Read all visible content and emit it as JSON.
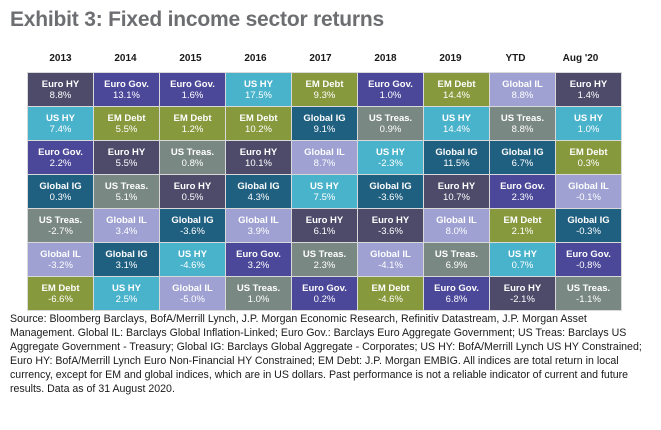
{
  "title": "Exhibit 3: Fixed income sector returns",
  "colors": {
    "Euro HY": "#4d4a6a",
    "Euro Gov.": "#4b4799",
    "US HY": "#4ab3cc",
    "EM Debt": "#87993d",
    "Global IG": "#1f5f80",
    "Global IL": "#9ea1d2",
    "US Treas.": "#7a8883"
  },
  "chart_data": {
    "type": "table",
    "title": "Exhibit 3: Fixed income sector returns",
    "columns": [
      "2013",
      "2014",
      "2015",
      "2016",
      "2017",
      "2018",
      "2019",
      "YTD",
      "Aug '20"
    ],
    "ranked_returns": [
      [
        [
          "Euro HY",
          "8.8%"
        ],
        [
          "US HY",
          "7.4%"
        ],
        [
          "Euro Gov.",
          "2.2%"
        ],
        [
          "Global IG",
          "0.3%"
        ],
        [
          "US Treas.",
          "-2.7%"
        ],
        [
          "Global IL",
          "-3.2%"
        ],
        [
          "EM Debt",
          "-6.6%"
        ]
      ],
      [
        [
          "Euro Gov.",
          "13.1%"
        ],
        [
          "EM Debt",
          "5.5%"
        ],
        [
          "Euro HY",
          "5.5%"
        ],
        [
          "US Treas.",
          "5.1%"
        ],
        [
          "Global IL",
          "3.4%"
        ],
        [
          "Global IG",
          "3.1%"
        ],
        [
          "US HY",
          "2.5%"
        ]
      ],
      [
        [
          "Euro Gov.",
          "1.6%"
        ],
        [
          "EM Debt",
          "1.2%"
        ],
        [
          "US Treas.",
          "0.8%"
        ],
        [
          "Euro HY",
          "0.5%"
        ],
        [
          "Global IG",
          "-3.6%"
        ],
        [
          "US HY",
          "-4.6%"
        ],
        [
          "Global IL",
          "-5.0%"
        ]
      ],
      [
        [
          "US HY",
          "17.5%"
        ],
        [
          "EM Debt",
          "10.2%"
        ],
        [
          "Euro HY",
          "10.1%"
        ],
        [
          "Global IG",
          "4.3%"
        ],
        [
          "Global IL",
          "3.9%"
        ],
        [
          "Euro Gov.",
          "3.2%"
        ],
        [
          "US Treas.",
          "1.0%"
        ]
      ],
      [
        [
          "EM Debt",
          "9.3%"
        ],
        [
          "Global IG",
          "9.1%"
        ],
        [
          "Global IL",
          "8.7%"
        ],
        [
          "US HY",
          "7.5%"
        ],
        [
          "Euro HY",
          "6.1%"
        ],
        [
          "US Treas.",
          "2.3%"
        ],
        [
          "Euro Gov.",
          "0.2%"
        ]
      ],
      [
        [
          "Euro Gov.",
          "1.0%"
        ],
        [
          "US Treas.",
          "0.9%"
        ],
        [
          "US HY",
          "-2.3%"
        ],
        [
          "Global IG",
          "-3.6%"
        ],
        [
          "Euro HY",
          "-3.6%"
        ],
        [
          "Global IL",
          "-4.1%"
        ],
        [
          "EM Debt",
          "-4.6%"
        ]
      ],
      [
        [
          "EM Debt",
          "14.4%"
        ],
        [
          "US HY",
          "14.4%"
        ],
        [
          "Global IG",
          "11.5%"
        ],
        [
          "Euro HY",
          "10.7%"
        ],
        [
          "Global IL",
          "8.0%"
        ],
        [
          "US Treas.",
          "6.9%"
        ],
        [
          "Euro Gov.",
          "6.8%"
        ]
      ],
      [
        [
          "Global IL",
          "8.8%"
        ],
        [
          "US Treas.",
          "8.8%"
        ],
        [
          "Global IG",
          "6.7%"
        ],
        [
          "Euro Gov.",
          "2.3%"
        ],
        [
          "EM Debt",
          "2.1%"
        ],
        [
          "US HY",
          "0.7%"
        ],
        [
          "Euro HY",
          "-2.1%"
        ]
      ],
      [
        [
          "Euro HY",
          "1.4%"
        ],
        [
          "US HY",
          "1.0%"
        ],
        [
          "EM Debt",
          "0.3%"
        ],
        [
          "Global IL",
          "-0.1%"
        ],
        [
          "Global IG",
          "-0.3%"
        ],
        [
          "Euro Gov.",
          "-0.8%"
        ],
        [
          "US Treas.",
          "-1.1%"
        ]
      ]
    ]
  },
  "footnote": "Source: Bloomberg Barclays, BofA/Merrill Lynch, J.P. Morgan Economic Research, Refinitiv Datastream, J.P. Morgan Asset Management. Global IL: Barclays Global Inflation-Linked; Euro Gov.: Barclays Euro Aggregate Government; US Treas: Barclays US Aggregate Government - Treasury; Global IG: Barclays Global Aggregate - Corporates; US HY: BofA/Merrill Lynch US HY Constrained; Euro HY: BofA/Merrill Lynch Euro Non-Financial HY Constrained; EM Debt: J.P. Morgan EMBIG. All indices are total return in local currency, except for EM and global indices, which are in US dollars. Past performance is not a reliable indicator of current and future results. Data as of 31 August 2020."
}
